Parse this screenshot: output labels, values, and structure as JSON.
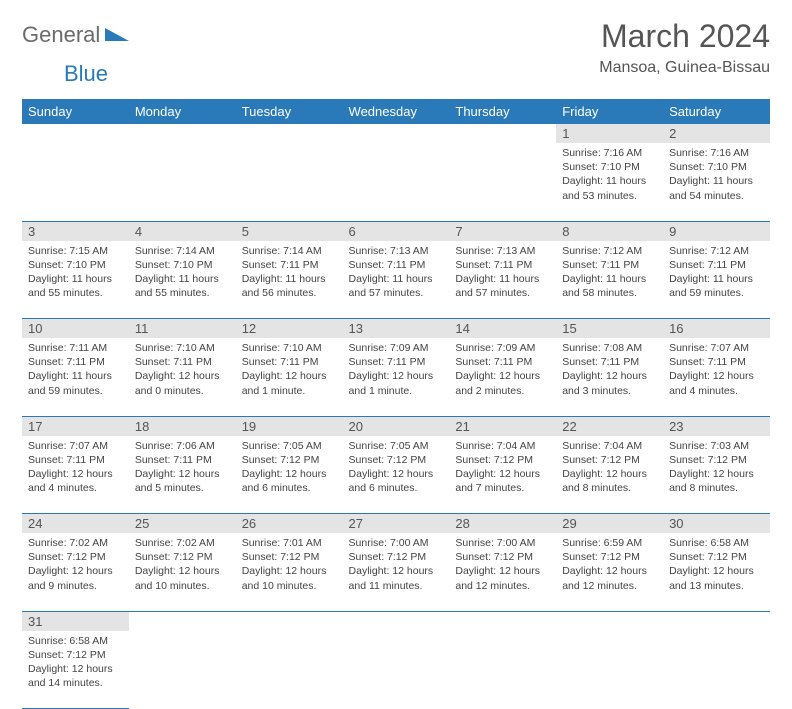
{
  "brand": {
    "part1": "General",
    "part2": "Blue"
  },
  "title": "March 2024",
  "location": "Mansoa, Guinea-Bissau",
  "colors": {
    "header_bg": "#2a7ab9",
    "header_text": "#ffffff",
    "daynum_bg": "#e4e4e4",
    "text": "#444444",
    "border": "#2a7ab9"
  },
  "day_headers": [
    "Sunday",
    "Monday",
    "Tuesday",
    "Wednesday",
    "Thursday",
    "Friday",
    "Saturday"
  ],
  "weeks": [
    [
      null,
      null,
      null,
      null,
      null,
      {
        "n": "1",
        "sr": "Sunrise: 7:16 AM",
        "ss": "Sunset: 7:10 PM",
        "dl": "Daylight: 11 hours and 53 minutes."
      },
      {
        "n": "2",
        "sr": "Sunrise: 7:16 AM",
        "ss": "Sunset: 7:10 PM",
        "dl": "Daylight: 11 hours and 54 minutes."
      }
    ],
    [
      {
        "n": "3",
        "sr": "Sunrise: 7:15 AM",
        "ss": "Sunset: 7:10 PM",
        "dl": "Daylight: 11 hours and 55 minutes."
      },
      {
        "n": "4",
        "sr": "Sunrise: 7:14 AM",
        "ss": "Sunset: 7:10 PM",
        "dl": "Daylight: 11 hours and 55 minutes."
      },
      {
        "n": "5",
        "sr": "Sunrise: 7:14 AM",
        "ss": "Sunset: 7:11 PM",
        "dl": "Daylight: 11 hours and 56 minutes."
      },
      {
        "n": "6",
        "sr": "Sunrise: 7:13 AM",
        "ss": "Sunset: 7:11 PM",
        "dl": "Daylight: 11 hours and 57 minutes."
      },
      {
        "n": "7",
        "sr": "Sunrise: 7:13 AM",
        "ss": "Sunset: 7:11 PM",
        "dl": "Daylight: 11 hours and 57 minutes."
      },
      {
        "n": "8",
        "sr": "Sunrise: 7:12 AM",
        "ss": "Sunset: 7:11 PM",
        "dl": "Daylight: 11 hours and 58 minutes."
      },
      {
        "n": "9",
        "sr": "Sunrise: 7:12 AM",
        "ss": "Sunset: 7:11 PM",
        "dl": "Daylight: 11 hours and 59 minutes."
      }
    ],
    [
      {
        "n": "10",
        "sr": "Sunrise: 7:11 AM",
        "ss": "Sunset: 7:11 PM",
        "dl": "Daylight: 11 hours and 59 minutes."
      },
      {
        "n": "11",
        "sr": "Sunrise: 7:10 AM",
        "ss": "Sunset: 7:11 PM",
        "dl": "Daylight: 12 hours and 0 minutes."
      },
      {
        "n": "12",
        "sr": "Sunrise: 7:10 AM",
        "ss": "Sunset: 7:11 PM",
        "dl": "Daylight: 12 hours and 1 minute."
      },
      {
        "n": "13",
        "sr": "Sunrise: 7:09 AM",
        "ss": "Sunset: 7:11 PM",
        "dl": "Daylight: 12 hours and 1 minute."
      },
      {
        "n": "14",
        "sr": "Sunrise: 7:09 AM",
        "ss": "Sunset: 7:11 PM",
        "dl": "Daylight: 12 hours and 2 minutes."
      },
      {
        "n": "15",
        "sr": "Sunrise: 7:08 AM",
        "ss": "Sunset: 7:11 PM",
        "dl": "Daylight: 12 hours and 3 minutes."
      },
      {
        "n": "16",
        "sr": "Sunrise: 7:07 AM",
        "ss": "Sunset: 7:11 PM",
        "dl": "Daylight: 12 hours and 4 minutes."
      }
    ],
    [
      {
        "n": "17",
        "sr": "Sunrise: 7:07 AM",
        "ss": "Sunset: 7:11 PM",
        "dl": "Daylight: 12 hours and 4 minutes."
      },
      {
        "n": "18",
        "sr": "Sunrise: 7:06 AM",
        "ss": "Sunset: 7:11 PM",
        "dl": "Daylight: 12 hours and 5 minutes."
      },
      {
        "n": "19",
        "sr": "Sunrise: 7:05 AM",
        "ss": "Sunset: 7:12 PM",
        "dl": "Daylight: 12 hours and 6 minutes."
      },
      {
        "n": "20",
        "sr": "Sunrise: 7:05 AM",
        "ss": "Sunset: 7:12 PM",
        "dl": "Daylight: 12 hours and 6 minutes."
      },
      {
        "n": "21",
        "sr": "Sunrise: 7:04 AM",
        "ss": "Sunset: 7:12 PM",
        "dl": "Daylight: 12 hours and 7 minutes."
      },
      {
        "n": "22",
        "sr": "Sunrise: 7:04 AM",
        "ss": "Sunset: 7:12 PM",
        "dl": "Daylight: 12 hours and 8 minutes."
      },
      {
        "n": "23",
        "sr": "Sunrise: 7:03 AM",
        "ss": "Sunset: 7:12 PM",
        "dl": "Daylight: 12 hours and 8 minutes."
      }
    ],
    [
      {
        "n": "24",
        "sr": "Sunrise: 7:02 AM",
        "ss": "Sunset: 7:12 PM",
        "dl": "Daylight: 12 hours and 9 minutes."
      },
      {
        "n": "25",
        "sr": "Sunrise: 7:02 AM",
        "ss": "Sunset: 7:12 PM",
        "dl": "Daylight: 12 hours and 10 minutes."
      },
      {
        "n": "26",
        "sr": "Sunrise: 7:01 AM",
        "ss": "Sunset: 7:12 PM",
        "dl": "Daylight: 12 hours and 10 minutes."
      },
      {
        "n": "27",
        "sr": "Sunrise: 7:00 AM",
        "ss": "Sunset: 7:12 PM",
        "dl": "Daylight: 12 hours and 11 minutes."
      },
      {
        "n": "28",
        "sr": "Sunrise: 7:00 AM",
        "ss": "Sunset: 7:12 PM",
        "dl": "Daylight: 12 hours and 12 minutes."
      },
      {
        "n": "29",
        "sr": "Sunrise: 6:59 AM",
        "ss": "Sunset: 7:12 PM",
        "dl": "Daylight: 12 hours and 12 minutes."
      },
      {
        "n": "30",
        "sr": "Sunrise: 6:58 AM",
        "ss": "Sunset: 7:12 PM",
        "dl": "Daylight: 12 hours and 13 minutes."
      }
    ],
    [
      {
        "n": "31",
        "sr": "Sunrise: 6:58 AM",
        "ss": "Sunset: 7:12 PM",
        "dl": "Daylight: 12 hours and 14 minutes."
      },
      null,
      null,
      null,
      null,
      null,
      null
    ]
  ]
}
